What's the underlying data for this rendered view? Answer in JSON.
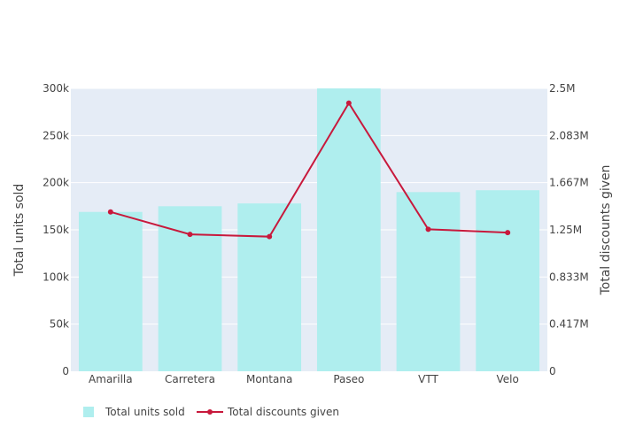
{
  "chart_data": {
    "type": "bar",
    "categories": [
      "Amarilla",
      "Carretera",
      "Montana",
      "Paseo",
      "VTT",
      "Velo"
    ],
    "series": [
      {
        "name": "Total units sold",
        "type": "bar",
        "axis": "left",
        "values": [
          169000,
          175000,
          178000,
          300000,
          190000,
          192000
        ]
      },
      {
        "name": "Total discounts given",
        "type": "line",
        "axis": "right",
        "values": [
          1408000,
          1210000,
          1190000,
          2370000,
          1255000,
          1226000
        ]
      }
    ],
    "ylabel": "Total units sold",
    "ylabel_right": "Total discounts given",
    "ylim": [
      0,
      300000
    ],
    "ylim_right": [
      0,
      2500000
    ],
    "yticks_left": [
      {
        "value": 0,
        "label": "0"
      },
      {
        "value": 50000,
        "label": "50k"
      },
      {
        "value": 100000,
        "label": "100k"
      },
      {
        "value": 150000,
        "label": "150k"
      },
      {
        "value": 200000,
        "label": "200k"
      },
      {
        "value": 250000,
        "label": "250k"
      },
      {
        "value": 300000,
        "label": "300k"
      }
    ],
    "yticks_right": [
      {
        "value": 0,
        "label": "0"
      },
      {
        "value": 416667,
        "label": "0.417M"
      },
      {
        "value": 833333,
        "label": "0.833M"
      },
      {
        "value": 1250000,
        "label": "1.25M"
      },
      {
        "value": 1666667,
        "label": "1.667M"
      },
      {
        "value": 2083333,
        "label": "2.083M"
      },
      {
        "value": 2500000,
        "label": "2.5M"
      }
    ],
    "grid": true,
    "legend_position": "bottom-left",
    "colors": {
      "bar": "#afeeee",
      "line": "#c8193c",
      "plot_bg": "#e5ecf6",
      "grid": "#ffffff",
      "text": "#444444"
    }
  }
}
